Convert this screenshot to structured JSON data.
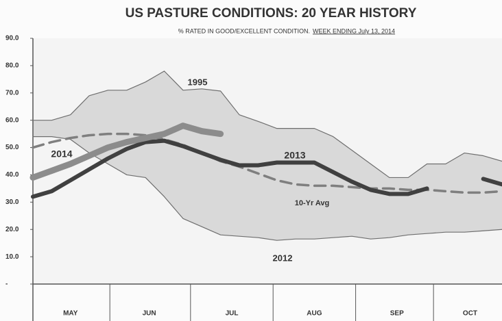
{
  "chart_data": {
    "type": "line",
    "title": "US PASTURE CONDITIONS: 20 YEAR HISTORY",
    "subtitle": [
      "% RATED IN GOOD/EXCELLENT CONDITION.",
      "WEEK ENDING July 13, 2014"
    ],
    "x": [
      0,
      1,
      2,
      3,
      4,
      5,
      6,
      7,
      8,
      9,
      10,
      11,
      12,
      13,
      14,
      15,
      16,
      17,
      18,
      19,
      20,
      21,
      22,
      23,
      24,
      25
    ],
    "xlim": [
      0,
      25
    ],
    "xticks": [
      {
        "value": 2.0,
        "label": "MAY"
      },
      {
        "value": 6.2,
        "label": "JUN"
      },
      {
        "value": 10.6,
        "label": "JUL"
      },
      {
        "value": 15.0,
        "label": "AUG"
      },
      {
        "value": 19.4,
        "label": "SEP"
      },
      {
        "value": 23.3,
        "label": "OCT"
      }
    ],
    "ylim": [
      0,
      90
    ],
    "yticks": [
      {
        "value": 0,
        "label": "-"
      },
      {
        "value": 10,
        "label": "10.0"
      },
      {
        "value": 20,
        "label": "20.0"
      },
      {
        "value": 30,
        "label": "30.0"
      },
      {
        "value": 40,
        "label": "40.0"
      },
      {
        "value": 50,
        "label": "50.0"
      },
      {
        "value": 60,
        "label": "60.0"
      },
      {
        "value": 70,
        "label": "70.0"
      },
      {
        "value": 80,
        "label": "80.0"
      },
      {
        "value": 90,
        "label": "90.0"
      }
    ],
    "range_fill": "#d9d9d9",
    "series": [
      {
        "name": "1995",
        "color": "#6e6e6e",
        "line_width": 1.2,
        "range": "upper",
        "values": [
          60,
          60,
          62,
          69,
          71,
          71,
          74,
          78,
          71,
          71.5,
          70.7,
          62,
          59.6,
          57,
          57,
          57,
          54,
          49,
          44,
          39,
          39,
          44,
          44,
          48,
          47,
          45
        ]
      },
      {
        "name": "2012",
        "color": "#6e6e6e",
        "line_width": 1.2,
        "range": "lower",
        "values": [
          54,
          54,
          53,
          48,
          44,
          40,
          39,
          32,
          24,
          21,
          18,
          17.5,
          17,
          16,
          16.5,
          16.5,
          17,
          17.5,
          16.5,
          17,
          18,
          18.5,
          19,
          19,
          19.5,
          20
        ]
      },
      {
        "name": "10-Yr Avg",
        "color": "#7f7f7f",
        "line_width": 3.5,
        "dashed": true,
        "values": [
          50,
          52,
          53.5,
          54.5,
          55,
          55,
          54.5,
          53,
          51,
          48,
          45,
          43,
          40.5,
          38,
          36.5,
          36,
          36,
          35.5,
          35,
          35,
          34.5,
          34.5,
          34,
          33.5,
          33.5,
          34
        ]
      },
      {
        "name": "2013",
        "color": "#404040",
        "line_width": 6,
        "values": [
          32,
          34,
          38,
          42,
          46,
          49.5,
          52,
          52.5,
          50.5,
          48,
          45.5,
          43.5,
          43.5,
          44.5,
          44.5,
          44.5,
          41,
          37.5,
          34.5,
          33,
          33,
          35,
          null,
          null,
          38.5,
          36.5
        ]
      },
      {
        "name": "2014",
        "color": "#8c8c8c",
        "line_width": 9,
        "values": [
          39,
          41.5,
          44,
          47,
          50,
          52,
          53.5,
          55,
          58,
          56,
          55,
          null,
          null,
          null,
          null,
          null,
          null,
          null,
          null,
          null,
          null,
          null,
          null,
          null,
          null,
          null
        ]
      }
    ]
  }
}
